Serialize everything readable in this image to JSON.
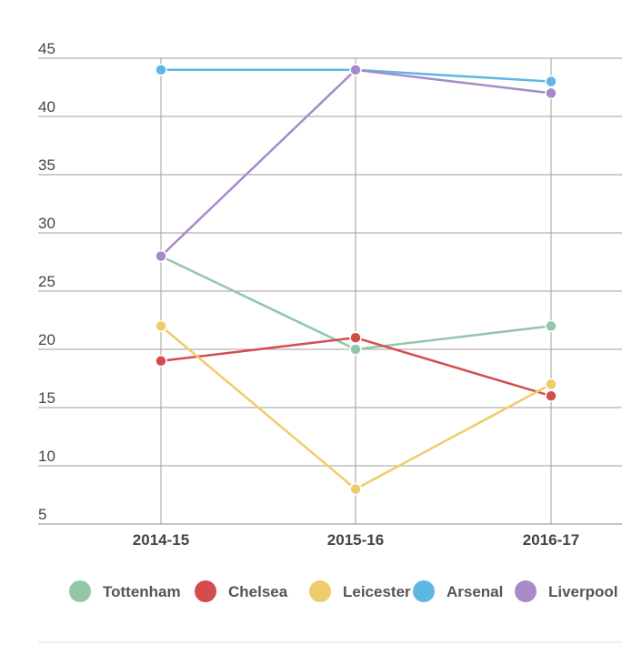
{
  "chart_data": {
    "type": "line",
    "title": "",
    "xlabel": "",
    "ylabel": "",
    "categories": [
      "2014-15",
      "2015-16",
      "2016-17"
    ],
    "ylim": [
      5,
      45
    ],
    "yticks": [
      "5",
      "10",
      "15",
      "20",
      "25",
      "30",
      "35",
      "40",
      "45"
    ],
    "grid": true,
    "legend_position": "bottom",
    "series": [
      {
        "name": "Tottenham",
        "color": "#93c7a9",
        "values": [
          28,
          20,
          22
        ]
      },
      {
        "name": "Chelsea",
        "color": "#d34d4f",
        "values": [
          19,
          21,
          16
        ]
      },
      {
        "name": "Leicester",
        "color": "#efcc6b",
        "values": [
          22,
          8,
          17
        ]
      },
      {
        "name": "Arsenal",
        "color": "#5cb8e3",
        "values": [
          44,
          44,
          43
        ]
      },
      {
        "name": "Liverpool",
        "color": "#a68bc8",
        "values": [
          28,
          44,
          42
        ]
      }
    ]
  }
}
